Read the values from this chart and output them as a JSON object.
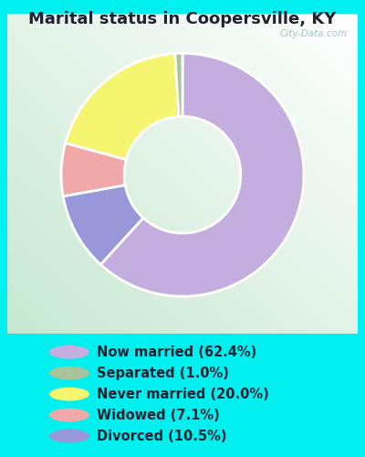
{
  "title": "Marital status in Coopersville, KY",
  "slices": [
    62.4,
    1.0,
    20.0,
    7.1,
    10.5
  ],
  "labels": [
    "Now married (62.4%)",
    "Separated (1.0%)",
    "Never married (20.0%)",
    "Widowed (7.1%)",
    "Divorced (10.5%)"
  ],
  "colors": [
    "#c4aee0",
    "#a8c49a",
    "#f5f570",
    "#f0a8a8",
    "#9898d8"
  ],
  "bg_color": "#00f0f0",
  "chart_bg_topleft": "#f0f8f4",
  "chart_bg_center": "#d0ead8",
  "title_fontsize": 13,
  "legend_fontsize": 10.5,
  "watermark": "City-Data.com",
  "donut_order": [
    0,
    4,
    3,
    2,
    1
  ],
  "donut_width": 0.52,
  "start_angle": 90
}
